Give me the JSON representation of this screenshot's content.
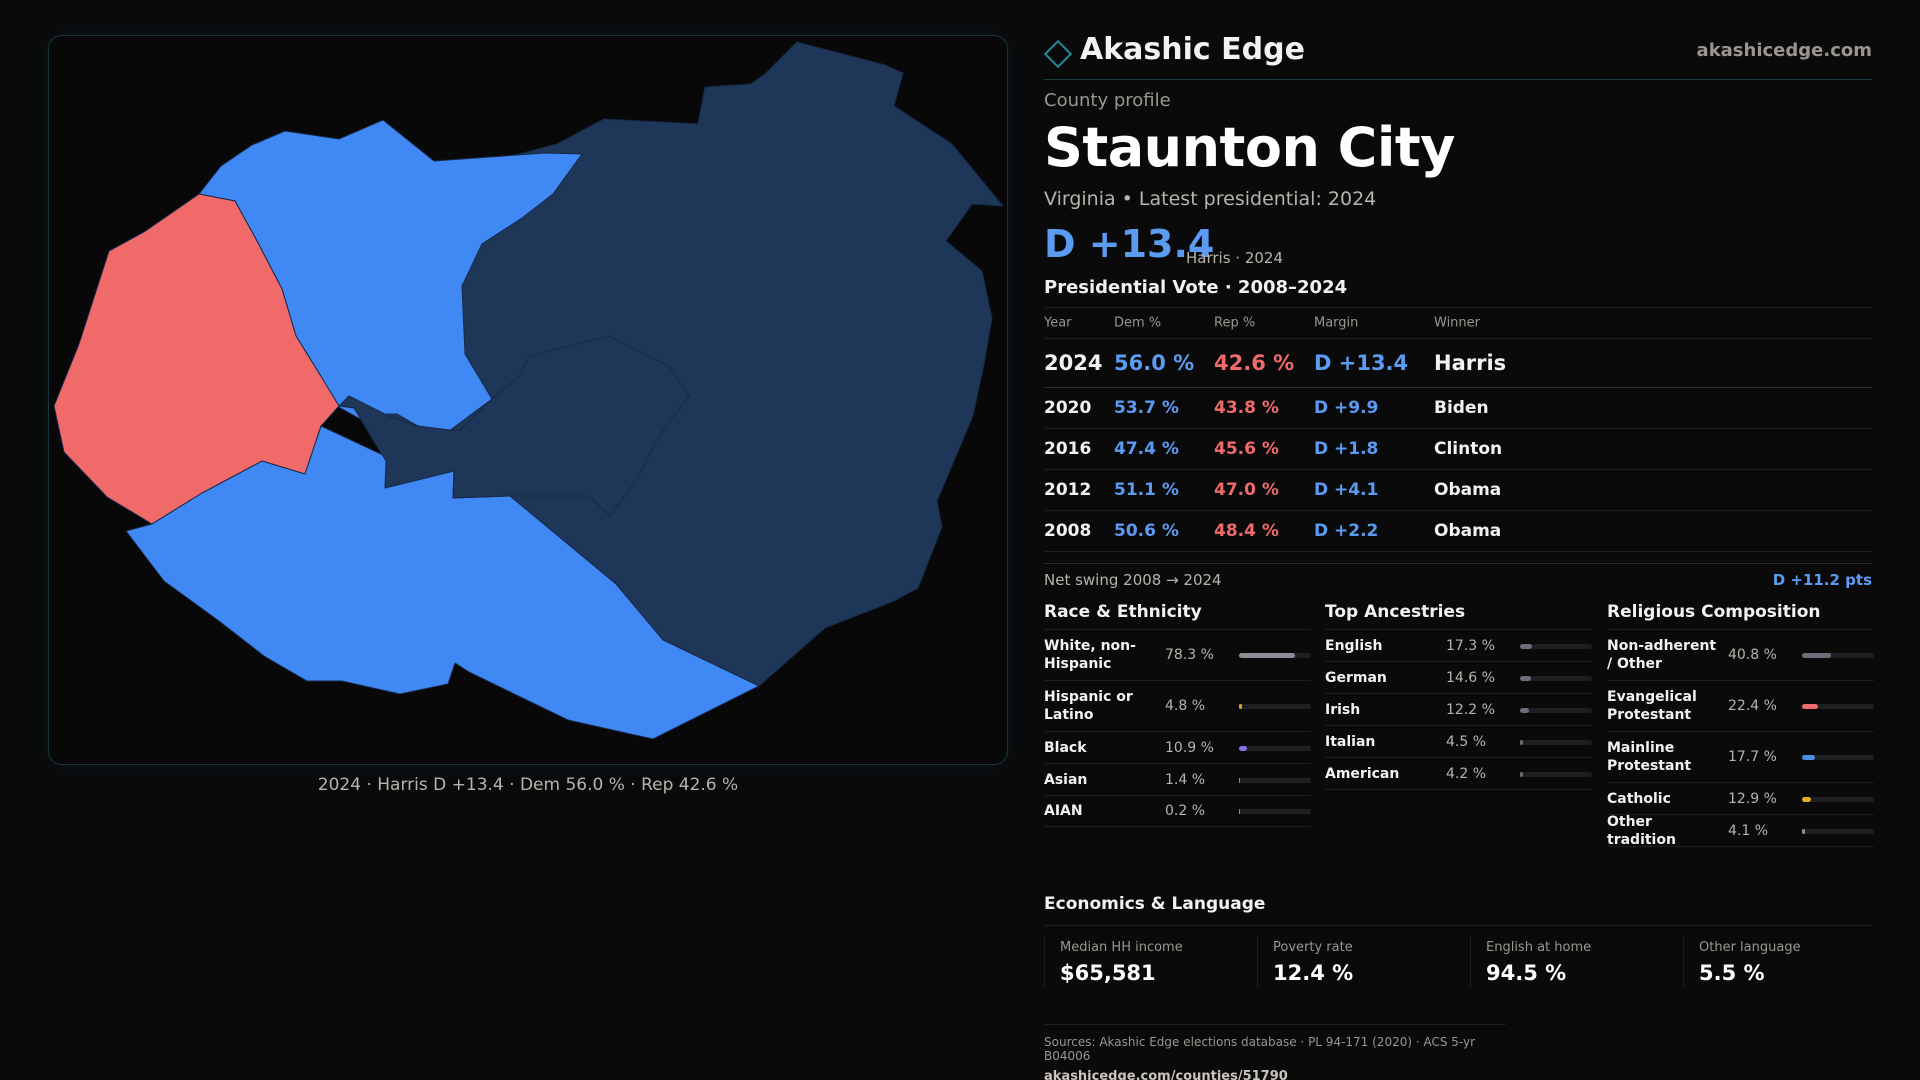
{
  "map": {
    "caption": "2024 · Harris D +13.4 · Dem 56.0 % · Rep 42.6 %",
    "colors": {
      "dem_light": "#4088f4",
      "dem_dark": "#1e3658",
      "rep": "#f06a6a"
    }
  },
  "header": {
    "brand": "Akashic Edge",
    "url": "akashicedge.com",
    "kicker": "County profile",
    "title": "Staunton City",
    "subtitle": "Virginia • Latest presidential: 2024",
    "margin": "D +13.4",
    "margin_note": "Harris · 2024"
  },
  "vote": {
    "title": "Presidential Vote · 2008–2024",
    "columns": {
      "year": "Year",
      "dem": "Dem %",
      "rep": "Rep %",
      "margin": "Margin",
      "winner": "Winner"
    },
    "rows": [
      {
        "year": "2024",
        "dem": "56.0 %",
        "rep": "42.6 %",
        "margin": "D +13.4",
        "winner": "Harris"
      },
      {
        "year": "2020",
        "dem": "53.7 %",
        "rep": "43.8 %",
        "margin": "D +9.9",
        "winner": "Biden"
      },
      {
        "year": "2016",
        "dem": "47.4 %",
        "rep": "45.6 %",
        "margin": "D +1.8",
        "winner": "Clinton"
      },
      {
        "year": "2012",
        "dem": "51.1 %",
        "rep": "47.0 %",
        "margin": "D +4.1",
        "winner": "Obama"
      },
      {
        "year": "2008",
        "dem": "50.6 %",
        "rep": "48.4 %",
        "margin": "D +2.2",
        "winner": "Obama"
      }
    ],
    "swing_label": "Net swing 2008 → 2024",
    "swing_value": "D +11.2 pts"
  },
  "race": {
    "title": "Race & Ethnicity",
    "items": [
      {
        "label": "White, non-Hispanic",
        "pct": "78.3 %",
        "fraction": 0.783,
        "color": "#8a8f99"
      },
      {
        "label": "Hispanic or Latino",
        "pct": "4.8 %",
        "fraction": 0.048,
        "color": "#e0a024"
      },
      {
        "label": "Black",
        "pct": "10.9 %",
        "fraction": 0.109,
        "color": "#8a6fe0"
      },
      {
        "label": "Asian",
        "pct": "1.4 %",
        "fraction": 0.014,
        "color": "#8a8f99"
      },
      {
        "label": "AIAN",
        "pct": "0.2 %",
        "fraction": 0.002,
        "color": "#8a8f99"
      }
    ]
  },
  "ancestry": {
    "title": "Top Ancestries",
    "items": [
      {
        "label": "English",
        "pct": "17.3 %",
        "fraction": 0.173,
        "color": "#6a6f79"
      },
      {
        "label": "German",
        "pct": "14.6 %",
        "fraction": 0.146,
        "color": "#6a6f79"
      },
      {
        "label": "Irish",
        "pct": "12.2 %",
        "fraction": 0.122,
        "color": "#6a6f79"
      },
      {
        "label": "Italian",
        "pct": "4.5 %",
        "fraction": 0.045,
        "color": "#6a6f79"
      },
      {
        "label": "American",
        "pct": "4.2 %",
        "fraction": 0.042,
        "color": "#6a6f79"
      }
    ]
  },
  "religion": {
    "title": "Religious Composition",
    "items": [
      {
        "label": "Non-adherent / Other",
        "pct": "40.8 %",
        "fraction": 0.408,
        "color": "#6a6f79"
      },
      {
        "label": "Evangelical Protestant",
        "pct": "22.4 %",
        "fraction": 0.224,
        "color": "#ef6a6a"
      },
      {
        "label": "Mainline Protestant",
        "pct": "17.7 %",
        "fraction": 0.177,
        "color": "#4a8fe0"
      },
      {
        "label": "Catholic",
        "pct": "12.9 %",
        "fraction": 0.129,
        "color": "#e0b024"
      },
      {
        "label": "Other tradition",
        "pct": "4.1 %",
        "fraction": 0.041,
        "color": "#8a8f99"
      }
    ]
  },
  "economics": {
    "title": "Economics & Language",
    "items": [
      {
        "label": "Median HH income",
        "value": "$65,581"
      },
      {
        "label": "Poverty rate",
        "value": "12.4 %"
      },
      {
        "label": "English at home",
        "value": "94.5 %"
      },
      {
        "label": "Other language",
        "value": "5.5 %"
      }
    ]
  },
  "sources": {
    "line1": "Sources: Akashic Edge elections database · PL 94-171 (2020) · ACS 5-yr B04006",
    "line2": "akashicedge.com/counties/51790"
  }
}
